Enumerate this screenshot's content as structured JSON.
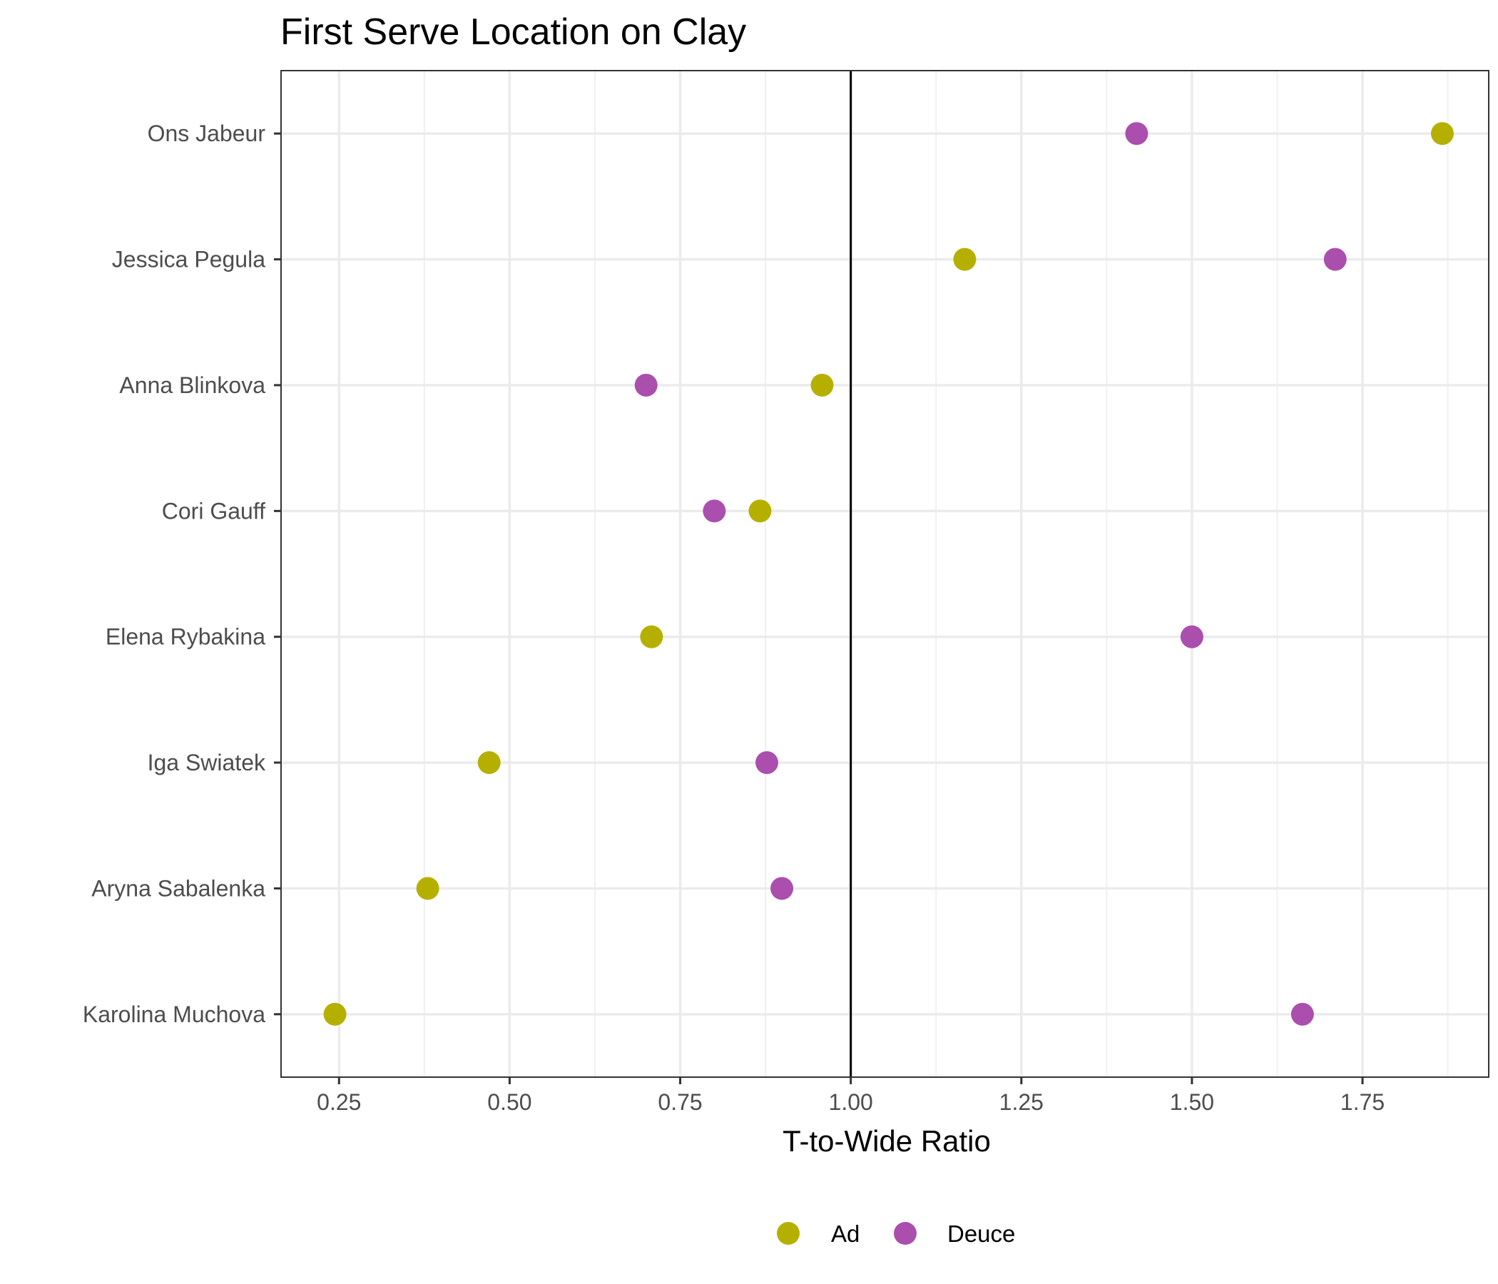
{
  "chart_data": {
    "type": "scatter",
    "title": "First Serve Location on Clay",
    "xlabel": "T-to-Wide Ratio",
    "ylabel": "",
    "xlim": [
      0.165,
      1.935
    ],
    "xticks": [
      "0.25",
      "0.50",
      "0.75",
      "1.00",
      "1.25",
      "1.50",
      "1.75"
    ],
    "reference_line_x": 1.0,
    "grid": true,
    "legend_position": "bottom",
    "categories": [
      "Ons Jabeur",
      "Jessica Pegula",
      "Anna Blinkova",
      "Cori Gauff",
      "Elena Rybakina",
      "Iga Swiatek",
      "Aryna Sabalenka",
      "Karolina Muchova"
    ],
    "series": [
      {
        "name": "Ad",
        "color": "#b5b000",
        "values": [
          1.867,
          1.167,
          0.958,
          0.867,
          0.708,
          0.47,
          0.38,
          0.244
        ]
      },
      {
        "name": "Deuce",
        "color": "#aa4fae",
        "values": [
          1.419,
          1.71,
          0.7,
          0.8,
          1.5,
          0.877,
          0.899,
          1.662
        ]
      }
    ]
  }
}
